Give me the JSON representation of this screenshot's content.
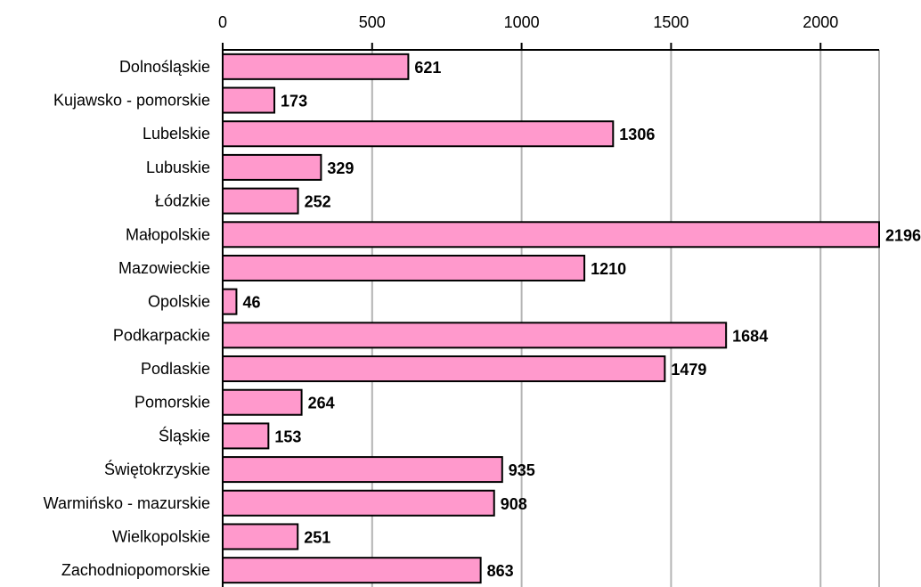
{
  "chart_data": {
    "type": "bar",
    "orientation": "horizontal",
    "categories": [
      "Dolnośląskie",
      "Kujawsko - pomorskie",
      "Lubelskie",
      "Lubuskie",
      "Łódzkie",
      "Małopolskie",
      "Mazowieckie",
      "Opolskie",
      "Podkarpackie",
      "Podlaskie",
      "Pomorskie",
      "Śląskie",
      "Świętokrzyskie",
      "Warmińsko - mazurskie",
      "Wielkopolskie",
      "Zachodniopomorskie"
    ],
    "values": [
      621,
      173,
      1306,
      329,
      252,
      2196,
      1210,
      46,
      1684,
      1479,
      264,
      153,
      935,
      908,
      251,
      863
    ],
    "value_labels": [
      "621",
      "173",
      "1306",
      "329",
      "252",
      "2196",
      "1210",
      "46",
      "1684",
      "1479",
      "264",
      "153",
      "935",
      "908",
      "251",
      "863"
    ],
    "x_ticks": [
      "0",
      "500",
      "1000",
      "1500",
      "2000"
    ],
    "x_tick_values": [
      0,
      500,
      1000,
      1500,
      2000
    ],
    "xlim": [
      0,
      2196
    ],
    "axis_position": "top",
    "grid": true,
    "bar_color": "#ff99cc",
    "title": "",
    "xlabel": "",
    "ylabel": ""
  }
}
